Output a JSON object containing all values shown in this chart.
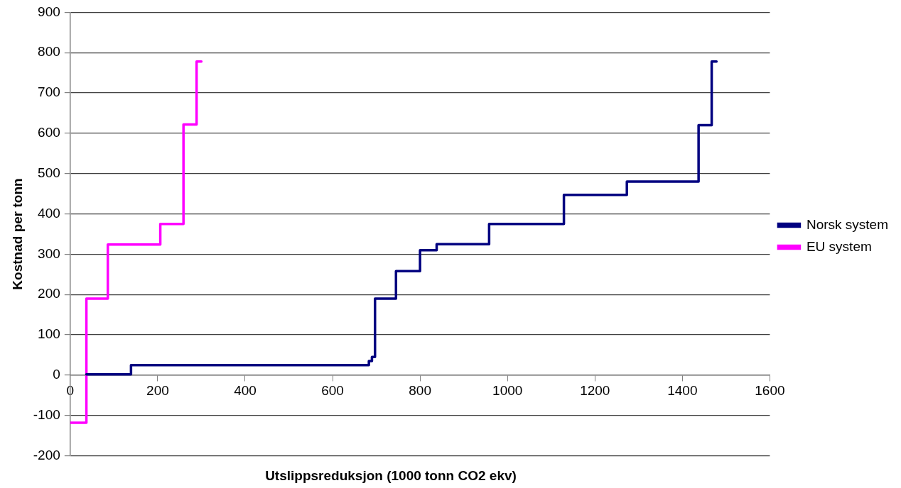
{
  "chart_data": {
    "type": "step",
    "xlabel": "Utslippsreduksjon (1000 tonn CO2 ekv)",
    "ylabel": "Kostnad per tonn",
    "xlim": [
      0,
      1600
    ],
    "xticks": [
      0,
      200,
      400,
      600,
      800,
      1000,
      1200,
      1400,
      1600
    ],
    "ylim": [
      -200,
      900
    ],
    "yticks": [
      -200,
      -100,
      0,
      100,
      200,
      300,
      400,
      500,
      600,
      700,
      800,
      900
    ],
    "grid": "y",
    "legend": "right",
    "line_style": "solid",
    "marker": "none",
    "series": [
      {
        "name": "Norsk system",
        "color": "#000080",
        "x": [
          37,
          139,
          683,
          690,
          697,
          745,
          800,
          838,
          958,
          1129,
          1273,
          1437,
          1467,
          1478
        ],
        "values": [
          2,
          25,
          35,
          45,
          190,
          258,
          310,
          325,
          375,
          447,
          480,
          620,
          778,
          778
        ]
      },
      {
        "name": "EU system",
        "color": "#ff00ff",
        "x": [
          0,
          37,
          86,
          206,
          259,
          289,
          300
        ],
        "values": [
          -118,
          190,
          324,
          375,
          622,
          778,
          778
        ]
      }
    ]
  }
}
